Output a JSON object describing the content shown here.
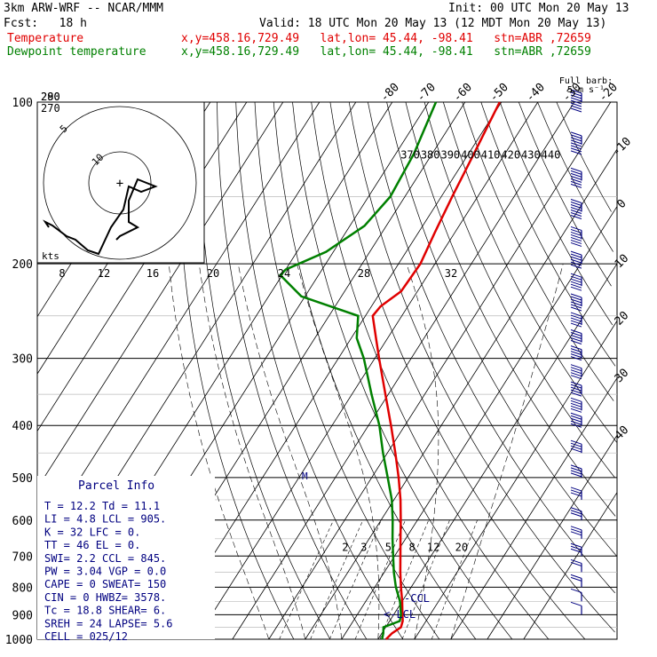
{
  "header": {
    "title_left": "3km ARW-WRF -- NCAR/MMM",
    "init": "Init: 00 UTC Mon 20 May 13",
    "fcst": "Fcst:   18 h",
    "valid": "Valid: 18 UTC Mon 20 May 13 (12 MDT Mon 20 May 13)",
    "temp_label": "Temperature",
    "temp_info": "x,y=458.16,729.49   lat,lon= 45.44, -98.41   stn=ABR ,72659",
    "dew_label": "Dewpoint temperature",
    "dew_info": "x,y=458.16,729.49   lat,lon= 45.44, -98.41   stn=ABR ,72659"
  },
  "colors": {
    "temperature": "#e00000",
    "dewpoint": "#008000",
    "wind": "#000080",
    "text_blue": "#000080"
  },
  "chart_data": {
    "type": "line",
    "pressure_ticks": [
      100,
      200,
      300,
      400,
      500,
      600,
      700,
      800,
      900,
      1000
    ],
    "isotherm_labels": [
      -80,
      -70,
      -60,
      -50,
      -40,
      -30,
      -20,
      -10,
      0,
      10,
      20,
      30,
      40
    ],
    "theta_labels": [
      370,
      380,
      390,
      400,
      410,
      420,
      430,
      440
    ],
    "theta_side_labels": [
      290,
      280,
      270
    ],
    "mixing_ratio_labels": [
      "2",
      "3",
      "5",
      "8",
      "12",
      "20"
    ],
    "hodo_speed_labels": [
      "8",
      "12",
      "16",
      "20",
      "24",
      "28",
      "32"
    ],
    "hodo_ring_labels": [
      "5",
      "10"
    ],
    "hodo_units": "kts",
    "wind_legend": [
      "Full barb:",
      "5 m s⁻¹"
    ],
    "ccl_label": "-CCL",
    "lcl_label": "<-LCL",
    "series": [
      {
        "name": "Temperature",
        "points": [
          [
            1000,
            12.2
          ],
          [
            975,
            12.8
          ],
          [
            950,
            14.2
          ],
          [
            925,
            13.6
          ],
          [
            900,
            12.4
          ],
          [
            850,
            10.0
          ],
          [
            800,
            7.2
          ],
          [
            750,
            4.4
          ],
          [
            700,
            1.6
          ],
          [
            650,
            -1.4
          ],
          [
            600,
            -4.6
          ],
          [
            550,
            -8.2
          ],
          [
            500,
            -12.6
          ],
          [
            450,
            -17.8
          ],
          [
            400,
            -23.8
          ],
          [
            350,
            -30.8
          ],
          [
            300,
            -38.8
          ],
          [
            275,
            -43.2
          ],
          [
            250,
            -48.0
          ],
          [
            240,
            -47.5
          ],
          [
            225,
            -44.5
          ],
          [
            200,
            -44.0
          ],
          [
            175,
            -45.5
          ],
          [
            150,
            -47.0
          ],
          [
            125,
            -48.5
          ],
          [
            100,
            -50.5
          ]
        ]
      },
      {
        "name": "Dewpoint temperature",
        "points": [
          [
            1000,
            11.1
          ],
          [
            975,
            10.4
          ],
          [
            950,
            9.4
          ],
          [
            925,
            12.8
          ],
          [
            900,
            12.0
          ],
          [
            850,
            9.4
          ],
          [
            800,
            5.8
          ],
          [
            750,
            2.6
          ],
          [
            700,
            -0.4
          ],
          [
            650,
            -3.6
          ],
          [
            600,
            -6.8
          ],
          [
            550,
            -10.6
          ],
          [
            500,
            -15.6
          ],
          [
            450,
            -21.2
          ],
          [
            400,
            -27.0
          ],
          [
            350,
            -34.6
          ],
          [
            300,
            -43.0
          ],
          [
            275,
            -48.5
          ],
          [
            250,
            -52.0
          ],
          [
            230,
            -71.0
          ],
          [
            210,
            -80.5
          ],
          [
            205,
            -80.0
          ],
          [
            190,
            -72.0
          ],
          [
            170,
            -66.0
          ],
          [
            150,
            -64.0
          ],
          [
            125,
            -65.0
          ],
          [
            100,
            -68.0
          ]
        ]
      }
    ],
    "wind_profile": [
      [
        100,
        8
      ],
      [
        120,
        8
      ],
      [
        140,
        7
      ],
      [
        160,
        7
      ],
      [
        180,
        7
      ],
      [
        200,
        6
      ],
      [
        220,
        6
      ],
      [
        240,
        6
      ],
      [
        260,
        5
      ],
      [
        280,
        5
      ],
      [
        300,
        5
      ],
      [
        325,
        5
      ],
      [
        350,
        5
      ],
      [
        375,
        5
      ],
      [
        400,
        5
      ],
      [
        450,
        4
      ],
      [
        500,
        4
      ],
      [
        550,
        3
      ],
      [
        600,
        3
      ],
      [
        650,
        3
      ],
      [
        700,
        3
      ],
      [
        750,
        2
      ],
      [
        800,
        2
      ],
      [
        850,
        1
      ],
      [
        900,
        1
      ]
    ],
    "hodograph": [
      [
        -0.4,
        0.05
      ],
      [
        -0.42,
        0.02
      ],
      [
        -0.38,
        0.04
      ],
      [
        -0.3,
        0.1
      ],
      [
        -0.25,
        0.12
      ],
      [
        -0.18,
        0.18
      ],
      [
        -0.12,
        0.2
      ],
      [
        -0.05,
        0.05
      ],
      [
        0.02,
        -0.05
      ],
      [
        0.05,
        -0.18
      ],
      [
        0.12,
        -0.15
      ],
      [
        0.2,
        -0.18
      ],
      [
        0.1,
        -0.22
      ],
      [
        0.05,
        -0.1
      ],
      [
        0.05,
        0.02
      ],
      [
        0.1,
        0.05
      ],
      [
        0.0,
        0.1
      ],
      [
        -0.02,
        0.12
      ]
    ]
  },
  "parcel": {
    "title": "Parcel Info",
    "rows": [
      "T  =   12.2  Td =  11.1",
      "LI =    4.8  LCL =  905.",
      "K  =     32  LFC =    0.",
      "TT =     46  EL  =    0.",
      "SWI=    2.2  CCL =  845.",
      "PW =   3.04  VGP =   0.0",
      "CAPE =    0  SWEAT=  150",
      "CIN  =    0  HWBZ= 3578.",
      "Tc  =  18.8  SHEAR=   6.",
      "SREH =   24  LAPSE=  5.6",
      "CELL = 025/12"
    ]
  }
}
